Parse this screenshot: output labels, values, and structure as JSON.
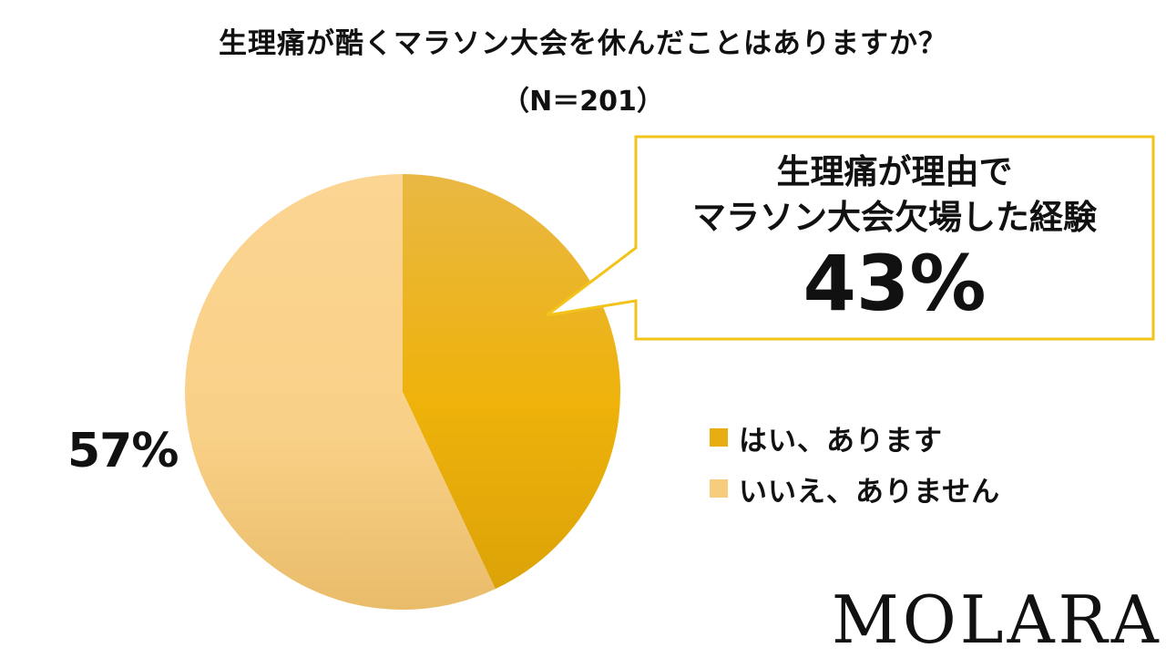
{
  "chart_data": {
    "type": "pie",
    "title": "生理痛が酷くマラソン大会を休んだことはありますか？",
    "subtitle": "（N＝201）",
    "categories": [
      "はい、あります",
      "いいえ、ありません"
    ],
    "values": [
      43,
      57
    ],
    "value_labels": [
      "43%",
      "57%"
    ],
    "colors": [
      "#e8ad10",
      "#f8cc7d"
    ],
    "legend_position": "right"
  },
  "callout": {
    "line1": "生理痛が理由で",
    "line2": "マラソン大会欠場した経験",
    "value": "43%",
    "border_color": "#f2c318"
  },
  "logo": "MOLARA"
}
